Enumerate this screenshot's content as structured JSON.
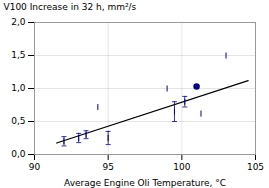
{
  "chart_data": {
    "type": "scatter",
    "xlabel": "Average Engine Oli Temperature, °C",
    "ylabel": "V100 Increase in 32 h, mm²/s",
    "xlim": [
      90,
      105
    ],
    "ylim": [
      0.0,
      2.0
    ],
    "xticks": [
      90,
      95,
      100,
      105
    ],
    "yticks": [
      {
        "value": 0.0,
        "label": "0,0"
      },
      {
        "value": 0.5,
        "label": "0,5"
      },
      {
        "value": 1.0,
        "label": "1,0"
      },
      {
        "value": 1.5,
        "label": "1,5"
      },
      {
        "value": 2.0,
        "label": "2,0"
      }
    ],
    "grid": true,
    "series": [
      {
        "type": "line",
        "color": "#000000",
        "x": [
          91.5,
          104.5
        ],
        "values": [
          0.175,
          1.12
        ]
      },
      {
        "type": "scatter",
        "marker": "tick",
        "color": "#000080",
        "x": [
          92.0,
          93.0,
          93.5,
          94.3,
          95.0,
          99.0,
          99.5,
          100.2,
          101.3,
          103.0
        ],
        "values": [
          0.2,
          0.25,
          0.3,
          0.72,
          0.25,
          1.0,
          0.65,
          0.8,
          0.62,
          1.5
        ],
        "yerr": [
          0.07,
          0.07,
          0.06,
          0.0,
          0.1,
          0.0,
          0.15,
          0.08,
          0.0,
          0.0
        ]
      },
      {
        "type": "scatter",
        "marker": "circle",
        "color": "#000080",
        "x": [
          101.0
        ],
        "values": [
          1.03
        ],
        "yerr": [
          0.0
        ]
      }
    ]
  }
}
